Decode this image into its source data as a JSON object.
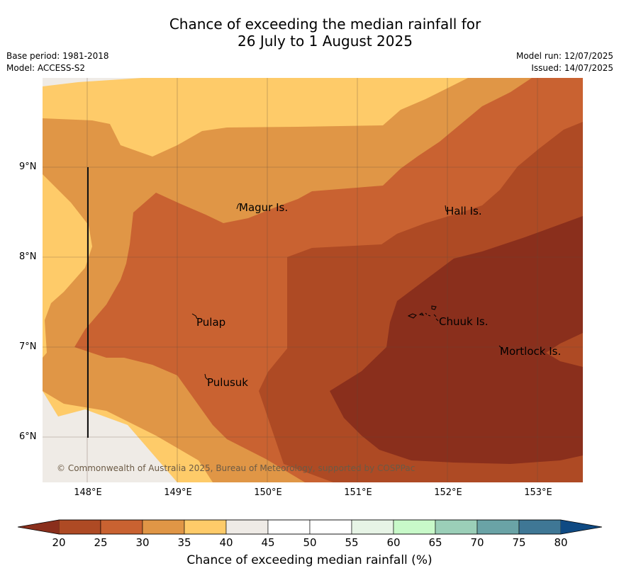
{
  "title_line1": "Chance of exceeding the median rainfall for",
  "title_line2": "26 July to 1 August 2025",
  "meta": {
    "base_period": "Base period: 1981-2018",
    "model": "Model: ACCESS-S2",
    "model_run": "Model run: 12/07/2025",
    "issued": "Issued: 14/07/2025"
  },
  "map": {
    "latitude_labels": [
      "9°N",
      "8°N",
      "7°N",
      "6°N"
    ],
    "longitude_labels": [
      "148°E",
      "149°E",
      "150°E",
      "151°E",
      "152°E",
      "153°E"
    ],
    "places": {
      "magur": "Magur Is.",
      "hall": "Hall Is.",
      "pulap": "Pulap",
      "chuuk": "Chuuk Is.",
      "mortlock": "Mortlock Is.",
      "pulusuk": "Pulusuk"
    },
    "copyright": "© Commonwealth of Australia 2025, Bureau of Meteorology, supported by COSPPac"
  },
  "colorbar": {
    "ticks": [
      "20",
      "25",
      "30",
      "35",
      "40",
      "45",
      "50",
      "55",
      "60",
      "65",
      "70",
      "75",
      "80"
    ],
    "colors": [
      "#ae4a24",
      "#c96231",
      "#e09646",
      "#fecb69",
      "#efebe6",
      "#ffffff",
      "#ffffff",
      "#e7f4e6",
      "#c8f9c9",
      "#9bcfb8",
      "#6aa3a6",
      "#3f7795"
    ],
    "under_color": "#8a2f1c",
    "over_color": "#0f4a83",
    "label": "Chance of exceeding median rainfall (%)"
  }
}
